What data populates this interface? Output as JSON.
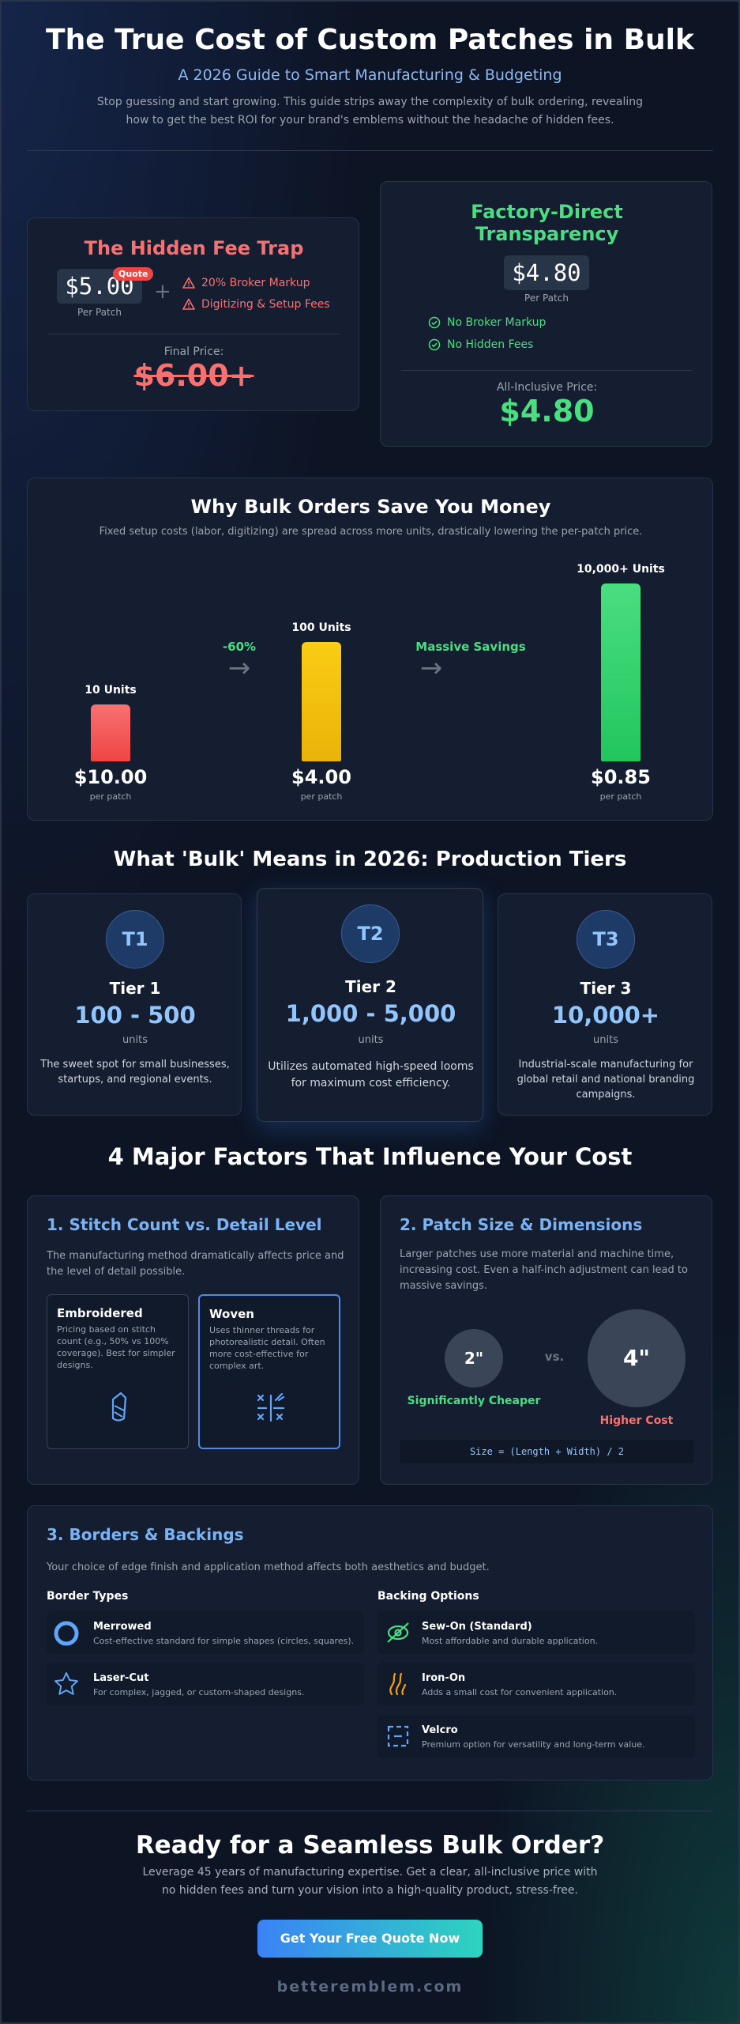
{
  "header": {
    "title": "The True Cost of Custom Patches in Bulk",
    "subtitle": "A 2026 Guide to Smart Manufacturing & Budgeting",
    "intro_line1": "Stop guessing and start growing. This guide strips away the complexity of bulk ordering, revealing",
    "intro_line2": "how to get the best ROI for your brand's emblems without the headache of hidden fees."
  },
  "hidden_fee": {
    "title": "The Hidden Fee Trap",
    "price": "$5.00",
    "badge": "Quote",
    "per": "Per Patch",
    "plus": "+",
    "fees": [
      "20% Broker Markup",
      "Digitizing & Setup Fees"
    ],
    "final_label": "Final Price:",
    "final_price": "$6.00+"
  },
  "factory": {
    "title_line1": "Factory-Direct",
    "title_line2": "Transparency",
    "price": "$4.80",
    "per": "Per Patch",
    "benefits": [
      "No Broker Markup",
      "No Hidden Fees"
    ],
    "final_label": "All-Inclusive Price:",
    "final_price": "$4.80"
  },
  "bulk_savings": {
    "title": "Why Bulk Orders Save You Money",
    "subtitle": "Fixed setup costs (labor, digitizing) are spread across more units, drastically lowering the per-patch price.",
    "per_label": "per patch",
    "arrow1_label": "-60%",
    "arrow2_label": "Massive Savings",
    "arrow_glyph": "→"
  },
  "chart_data": {
    "type": "bar",
    "title": "Why Bulk Orders Save You Money",
    "categories": [
      "10 Units",
      "100 Units",
      "10,000+ Units"
    ],
    "values": [
      10.0,
      4.0,
      0.85
    ],
    "price_labels": [
      "$10.00",
      "$4.00",
      "$0.85"
    ],
    "bar_levels": [
      0.32,
      0.67,
      1.0
    ],
    "colors": [
      "#ef4444",
      "#eab308",
      "#22c55e"
    ],
    "ylabel": "per patch",
    "annotations": [
      "-60%",
      "Massive Savings"
    ]
  },
  "tiers": {
    "title": "What 'Bulk' Means in 2026: Production Tiers",
    "units_label": "units",
    "items": [
      {
        "badge": "T1",
        "name": "Tier 1",
        "range": "100 - 500",
        "desc1": "The sweet spot for small businesses,",
        "desc2": "startups, and regional events.",
        "desc3": ""
      },
      {
        "badge": "T2",
        "name": "Tier 2",
        "range": "1,000 - 5,000",
        "desc1": "Utilizes automated high-speed looms",
        "desc2": "for maximum cost efficiency.",
        "desc3": ""
      },
      {
        "badge": "T3",
        "name": "Tier 3",
        "range": "10,000+",
        "desc1": "Industrial-scale manufacturing for",
        "desc2": "global retail and national branding",
        "desc3": "campaigns."
      }
    ]
  },
  "factors": {
    "title": "4 Major Factors That Influence Your Cost",
    "stitch": {
      "title": "1. Stitch Count vs. Detail Level",
      "desc1": "The manufacturing method dramatically affects price and",
      "desc2": "the level of detail possible.",
      "embroidered": {
        "title": "Embroidered",
        "d1": "Pricing based on stitch",
        "d2": "count (e.g., 50% vs 100%",
        "d3": "coverage). Best for simpler",
        "d4": "designs.",
        "icon": "needle-icon"
      },
      "woven": {
        "title": "Woven",
        "d1": "Uses thinner threads for",
        "d2": "photorealistic detail. Often",
        "d3": "more cost-effective for",
        "d4": "complex art.",
        "icon": "pattern-icon"
      }
    },
    "size": {
      "title": "2. Patch Size & Dimensions",
      "desc1": "Larger patches use more material and machine time,",
      "desc2": "increasing cost. Even a half-inch adjustment can lead to",
      "desc3": "massive savings.",
      "small": "2\"",
      "small_label": "Significantly Cheaper",
      "vs": "vs.",
      "large": "4\"",
      "large_label": "Higher Cost",
      "formula": "Size = (Length + Width) / 2"
    },
    "borders": {
      "title": "3. Borders & Backings",
      "desc": "Your choice of edge finish and application method affects both aesthetics and budget.",
      "border_head": "Border Types",
      "backing_head": "Backing Options",
      "border_items": [
        {
          "title": "Merrowed",
          "desc": "Cost-effective standard for simple shapes (circles, squares).",
          "icon": "ring-icon"
        },
        {
          "title": "Laser-Cut",
          "desc": "For complex, jagged, or custom-shaped designs.",
          "icon": "star-icon"
        }
      ],
      "backing_items": [
        {
          "title": "Sew-On (Standard)",
          "desc": "Most affordable and durable application.",
          "icon": "thread-icon"
        },
        {
          "title": "Iron-On",
          "desc": "Adds a small cost for convenient application.",
          "icon": "heat-icon"
        },
        {
          "title": "Velcro",
          "desc": "Premium option for versatility and long-term value.",
          "icon": "hook-loop-icon"
        }
      ]
    }
  },
  "cta": {
    "title": "Ready for a Seamless Bulk Order?",
    "desc1": "Leverage 45 years of manufacturing expertise. Get a clear, all-inclusive price with",
    "desc2": "no hidden fees and turn your vision into a high-quality product, stress-free.",
    "button": "Get Your Free Quote Now",
    "site": "betteremblem.com"
  }
}
